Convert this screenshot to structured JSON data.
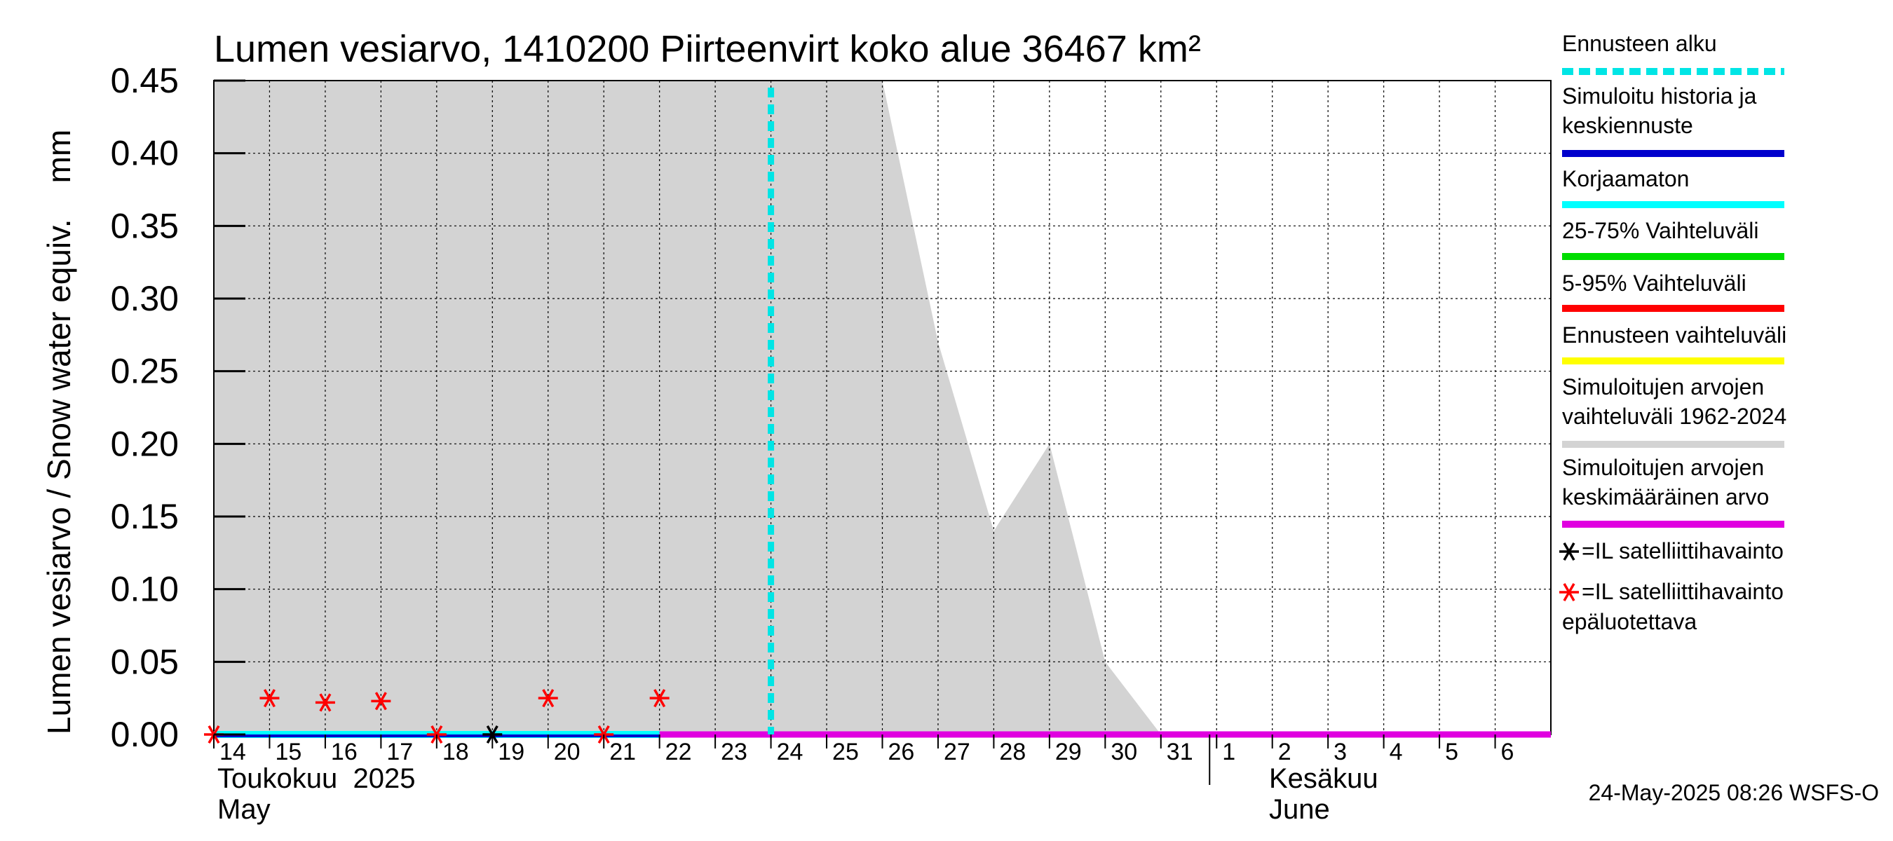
{
  "chart_data": {
    "type": "area",
    "title": "Lumen vesiarvo, 1410200 Piirteenvirt koko alue 36467 km²",
    "ylabel": "Lumen vesiarvo / Snow water equiv.    mm",
    "ylim": [
      0,
      0.45
    ],
    "y_ticks": [
      "0.00",
      "0.05",
      "0.10",
      "0.15",
      "0.20",
      "0.25",
      "0.30",
      "0.35",
      "0.40",
      "0.45"
    ],
    "x_range": [
      0,
      24
    ],
    "x_tick_labels": [
      "14",
      "15",
      "16",
      "17",
      "18",
      "19",
      "20",
      "21",
      "22",
      "23",
      "24",
      "25",
      "26",
      "27",
      "28",
      "29",
      "30",
      "31",
      "1",
      "2",
      "3",
      "4",
      "5",
      "6"
    ],
    "month_labels": {
      "may_fi": "Toukokuu  2025",
      "may_en": "May",
      "june_fi": "Kesäkuu",
      "june_en": "June"
    },
    "forecast_start_day": 10,
    "simulated_range_upper": [
      [
        0,
        0.45
      ],
      [
        12,
        0.45
      ],
      [
        13,
        0.27
      ],
      [
        14,
        0.14
      ],
      [
        15,
        0.2
      ],
      [
        16,
        0.05
      ],
      [
        17,
        0
      ],
      [
        24,
        0
      ]
    ],
    "history_line": {
      "x": [
        0,
        8
      ],
      "value": 0
    },
    "mean_line": {
      "x": [
        0,
        24
      ],
      "value": 0
    },
    "satellite_obs": [
      {
        "day": 5,
        "value": 0
      }
    ],
    "satellite_obs_unreliable": [
      {
        "day": 0,
        "value": 0
      },
      {
        "day": 1,
        "value": 0.025
      },
      {
        "day": 2,
        "value": 0.022
      },
      {
        "day": 3,
        "value": 0.023
      },
      {
        "day": 4,
        "value": 0
      },
      {
        "day": 6,
        "value": 0.025
      },
      {
        "day": 7,
        "value": 0
      },
      {
        "day": 8,
        "value": 0.025
      }
    ],
    "legend": [
      {
        "label": "Ennusteen alku",
        "color": "#00e5e5",
        "style": "dashed"
      },
      {
        "label": "Simuloitu historia ja",
        "label2": "keskiennuste",
        "color": "#0000cc",
        "style": "solid"
      },
      {
        "label": "Korjaamaton",
        "color": "#00ffff",
        "style": "solid"
      },
      {
        "label": "25-75% Vaihteluväli",
        "color": "#00dd00",
        "style": "solid"
      },
      {
        "label": "5-95% Vaihteluväli",
        "color": "#ff0000",
        "style": "solid"
      },
      {
        "label": "Ennusteen vaihteluväli",
        "color": "#ffff00",
        "style": "solid"
      },
      {
        "label": "Simuloitujen arvojen",
        "label2": "vaihteluväli 1962-2024",
        "color": "#d3d3d3",
        "style": "solid"
      },
      {
        "label": "Simuloitujen arvojen",
        "label2": "keskimääräinen arvo",
        "color": "#e000e0",
        "style": "solid"
      }
    ],
    "marker_legend": [
      {
        "label": "=IL satelliittihavainto",
        "color": "#000000"
      },
      {
        "label": "=IL satelliittihavainto",
        "label2": "epäluotettava",
        "color": "#ff0000"
      }
    ],
    "timestamp": "24-May-2025 08:26 WSFS-O"
  }
}
